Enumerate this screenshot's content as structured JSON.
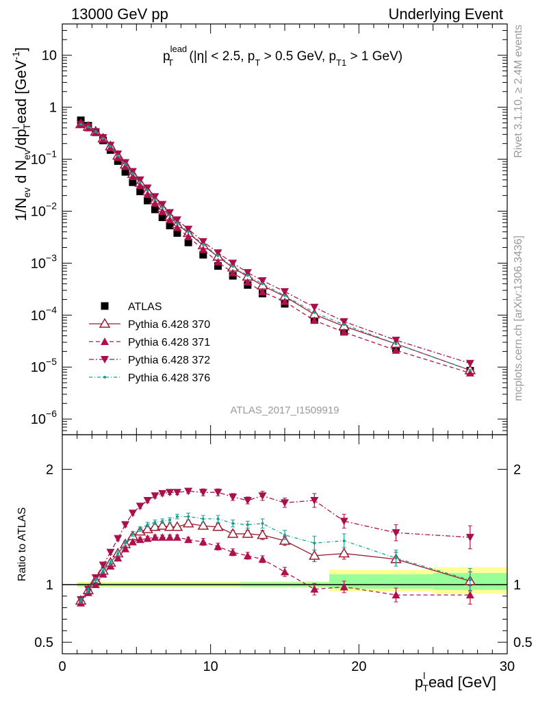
{
  "header": {
    "left": "13000 GeV pp",
    "right": "Underlying Event"
  },
  "plot_label": {
    "main": "p",
    "sub": "T",
    "sup": "lead",
    "rest": " (|η| < 2.5, p",
    "rest_sub": "T",
    "rest2": " > 0.5 GeV, p",
    "rest2_sub": "T1",
    "rest3": " > 1 GeV)"
  },
  "side_labels": {
    "rivet": "Rivet 3.1.10, ≥ 2.4M events",
    "mcplots": "mcplots.cern.ch [arXiv:1306.3436]"
  },
  "analysis_id": "ATLAS_2017_I1509919",
  "colors": {
    "atlas": "#000000",
    "p370": "#9a1b2f",
    "p371": "#b0104d",
    "p372": "#a8104c",
    "p376": "#18a090",
    "band_yellow": "#ffff99",
    "band_green": "#99ff99"
  },
  "chart_data": [
    {
      "type": "scatter",
      "log_y": true,
      "ylabel": "1/N_ev d N_ev/dp_T^lead [GeV^-1]",
      "ylabel_parts": {
        "a": "1/N",
        "a_sub": "ev",
        "b": " d N",
        "b_sub": "ev",
        "c": "/dp",
        "c_sub": "T",
        "c_sup": "l",
        "d": "ead [GeV",
        "d_sup": "-1",
        "e": "]"
      },
      "xlim": [
        0,
        30
      ],
      "ylim": [
        5e-07,
        40
      ],
      "y_ticks": [
        {
          "v": 1e-06,
          "base": "10",
          "exp": "−6"
        },
        {
          "v": 1e-05,
          "base": "10",
          "exp": "−5"
        },
        {
          "v": 0.0001,
          "base": "10",
          "exp": "−4"
        },
        {
          "v": 0.001,
          "base": "10",
          "exp": "−3"
        },
        {
          "v": 0.01,
          "base": "10",
          "exp": "−2"
        },
        {
          "v": 0.1,
          "base": "10",
          "exp": "−1"
        },
        {
          "v": 1,
          "base": "1",
          "exp": ""
        },
        {
          "v": 10,
          "base": "10",
          "exp": ""
        }
      ],
      "x": [
        1.25,
        1.75,
        2.25,
        2.75,
        3.25,
        3.75,
        4.25,
        4.75,
        5.25,
        5.75,
        6.25,
        6.75,
        7.25,
        7.75,
        8.5,
        9.5,
        10.5,
        11.5,
        12.5,
        13.5,
        15.0,
        17.0,
        19.0,
        22.5,
        27.5
      ],
      "legend": [
        "ATLAS",
        "Pythia 6.428 370",
        "Pythia 6.428 371",
        "Pythia 6.428 372",
        "Pythia 6.428 376"
      ],
      "series": [
        {
          "name": "ATLAS",
          "marker": "square",
          "values": [
            0.56,
            0.44,
            0.33,
            0.23,
            0.15,
            0.092,
            0.057,
            0.036,
            0.024,
            0.016,
            0.0108,
            0.0076,
            0.0053,
            0.0038,
            0.0025,
            0.00145,
            0.00088,
            0.00057,
            0.00038,
            0.00026,
            0.000165,
            8.2e-05,
            4.8e-05,
            2.3e-05,
            8.5e-06
          ]
        },
        {
          "name": "Pythia 6.428 370",
          "marker": "triangle-open",
          "values": [
            0.47,
            0.42,
            0.34,
            0.25,
            0.177,
            0.117,
            0.079,
            0.052,
            0.035,
            0.024,
            0.0162,
            0.0114,
            0.0079,
            0.0056,
            0.0038,
            0.00219,
            0.00133,
            0.00082,
            0.00055,
            0.00037,
            0.000228,
            0.000103,
            6.1e-05,
            2.8e-05,
            8.7e-06
          ]
        },
        {
          "name": "Pythia 6.428 371",
          "marker": "triangle-up",
          "values": [
            0.47,
            0.4,
            0.33,
            0.24,
            0.166,
            0.108,
            0.072,
            0.046,
            0.031,
            0.021,
            0.0142,
            0.0098,
            0.0068,
            0.0048,
            0.0032,
            0.00182,
            0.00105,
            0.00065,
            0.00043,
            0.00028,
            0.000182,
            7.9e-05,
            4.7e-05,
            2.1e-05,
            7.7e-06
          ]
        },
        {
          "name": "Pythia 6.428 372",
          "marker": "triangle-down",
          "values": [
            0.47,
            0.42,
            0.34,
            0.26,
            0.185,
            0.126,
            0.086,
            0.058,
            0.04,
            0.028,
            0.019,
            0.0135,
            0.0094,
            0.0068,
            0.0045,
            0.0026,
            0.00158,
            0.001,
            0.00066,
            0.00046,
            0.000283,
            0.000142,
            7.5e-05,
            3.3e-05,
            1.18e-05
          ]
        },
        {
          "name": "Pythia 6.428 376",
          "marker": "dot",
          "values": [
            0.47,
            0.42,
            0.34,
            0.25,
            0.177,
            0.117,
            0.08,
            0.053,
            0.036,
            0.025,
            0.0167,
            0.0118,
            0.0082,
            0.0059,
            0.004,
            0.00229,
            0.00139,
            0.00087,
            0.00058,
            0.0004,
            0.000238,
            0.000112,
            6.6e-05,
            2.8e-05,
            8.7e-06
          ]
        }
      ]
    },
    {
      "type": "line",
      "ylabel": "Ratio to ATLAS",
      "xlabel": "p_T^lead [GeV]",
      "xlabel_parts": {
        "a": "p",
        "a_sub": "T",
        "a_sup": "l",
        "b": "ead [GeV]"
      },
      "xlim": [
        0,
        30
      ],
      "ylim": [
        0.4,
        2.3
      ],
      "x_ticks": [
        0,
        10,
        20,
        30
      ],
      "y_ticks": [
        0.5,
        1,
        2
      ],
      "x": [
        1.25,
        1.75,
        2.25,
        2.75,
        3.25,
        3.75,
        4.25,
        4.75,
        5.25,
        5.75,
        6.25,
        6.75,
        7.25,
        7.75,
        8.5,
        9.5,
        10.5,
        11.5,
        12.5,
        13.5,
        15.0,
        17.0,
        19.0,
        22.5,
        27.5
      ],
      "bands": [
        {
          "x_from": 1.0,
          "x_to": 8.0,
          "yellow": [
            0.975,
            1.025
          ],
          "green": [
            0.985,
            1.015
          ]
        },
        {
          "x_from": 8.0,
          "x_to": 12.0,
          "yellow": [
            0.975,
            1.025
          ],
          "green": [
            0.985,
            1.015
          ]
        },
        {
          "x_from": 12.0,
          "x_to": 18.0,
          "yellow": [
            0.97,
            1.03
          ],
          "green": [
            0.98,
            1.02
          ]
        },
        {
          "x_from": 18.0,
          "x_to": 25.0,
          "yellow": [
            0.94,
            1.13
          ],
          "green": [
            0.965,
            1.09
          ]
        },
        {
          "x_from": 25.0,
          "x_to": 30.0,
          "yellow": [
            0.92,
            1.15
          ],
          "green": [
            0.955,
            1.1
          ]
        }
      ],
      "series": [
        {
          "name": "Pythia 6.428 370",
          "values": [
            0.86,
            0.95,
            1.04,
            1.12,
            1.19,
            1.27,
            1.35,
            1.42,
            1.46,
            1.48,
            1.5,
            1.51,
            1.5,
            1.5,
            1.53,
            1.51,
            1.5,
            1.44,
            1.44,
            1.43,
            1.38,
            1.25,
            1.27,
            1.22,
            1.03
          ],
          "err": [
            0.02,
            0.02,
            0.02,
            0.02,
            0.02,
            0.02,
            0.02,
            0.02,
            0.02,
            0.02,
            0.02,
            0.02,
            0.02,
            0.02,
            0.03,
            0.03,
            0.03,
            0.03,
            0.03,
            0.04,
            0.04,
            0.05,
            0.05,
            0.06,
            0.08
          ]
        },
        {
          "name": "Pythia 6.428 371",
          "values": [
            0.84,
            0.93,
            1.0,
            1.09,
            1.16,
            1.23,
            1.31,
            1.37,
            1.39,
            1.4,
            1.41,
            1.41,
            1.41,
            1.41,
            1.39,
            1.37,
            1.33,
            1.28,
            1.25,
            1.22,
            1.11,
            0.96,
            0.98,
            0.91,
            0.91
          ],
          "err": [
            0.02,
            0.02,
            0.02,
            0.02,
            0.02,
            0.02,
            0.02,
            0.02,
            0.02,
            0.02,
            0.02,
            0.02,
            0.02,
            0.02,
            0.02,
            0.03,
            0.03,
            0.03,
            0.03,
            0.03,
            0.04,
            0.05,
            0.05,
            0.06,
            0.08
          ]
        },
        {
          "name": "Pythia 6.428 372",
          "values": [
            0.87,
            0.96,
            1.06,
            1.17,
            1.28,
            1.4,
            1.52,
            1.62,
            1.68,
            1.73,
            1.77,
            1.79,
            1.8,
            1.8,
            1.81,
            1.8,
            1.8,
            1.76,
            1.73,
            1.77,
            1.71,
            1.73,
            1.55,
            1.45,
            1.41
          ],
          "err": [
            0.02,
            0.02,
            0.02,
            0.02,
            0.02,
            0.02,
            0.02,
            0.02,
            0.02,
            0.02,
            0.02,
            0.02,
            0.02,
            0.02,
            0.02,
            0.03,
            0.03,
            0.03,
            0.03,
            0.04,
            0.04,
            0.06,
            0.06,
            0.07,
            0.1
          ]
        },
        {
          "name": "Pythia 6.428 376",
          "values": [
            0.86,
            0.95,
            1.04,
            1.12,
            1.19,
            1.27,
            1.36,
            1.44,
            1.48,
            1.52,
            1.54,
            1.55,
            1.56,
            1.59,
            1.59,
            1.57,
            1.57,
            1.53,
            1.52,
            1.53,
            1.43,
            1.36,
            1.38,
            1.23,
            1.04
          ],
          "err": [
            0.02,
            0.02,
            0.02,
            0.02,
            0.02,
            0.02,
            0.02,
            0.02,
            0.02,
            0.02,
            0.02,
            0.02,
            0.02,
            0.02,
            0.03,
            0.03,
            0.03,
            0.03,
            0.03,
            0.04,
            0.04,
            0.06,
            0.06,
            0.07,
            0.1
          ]
        }
      ]
    }
  ]
}
